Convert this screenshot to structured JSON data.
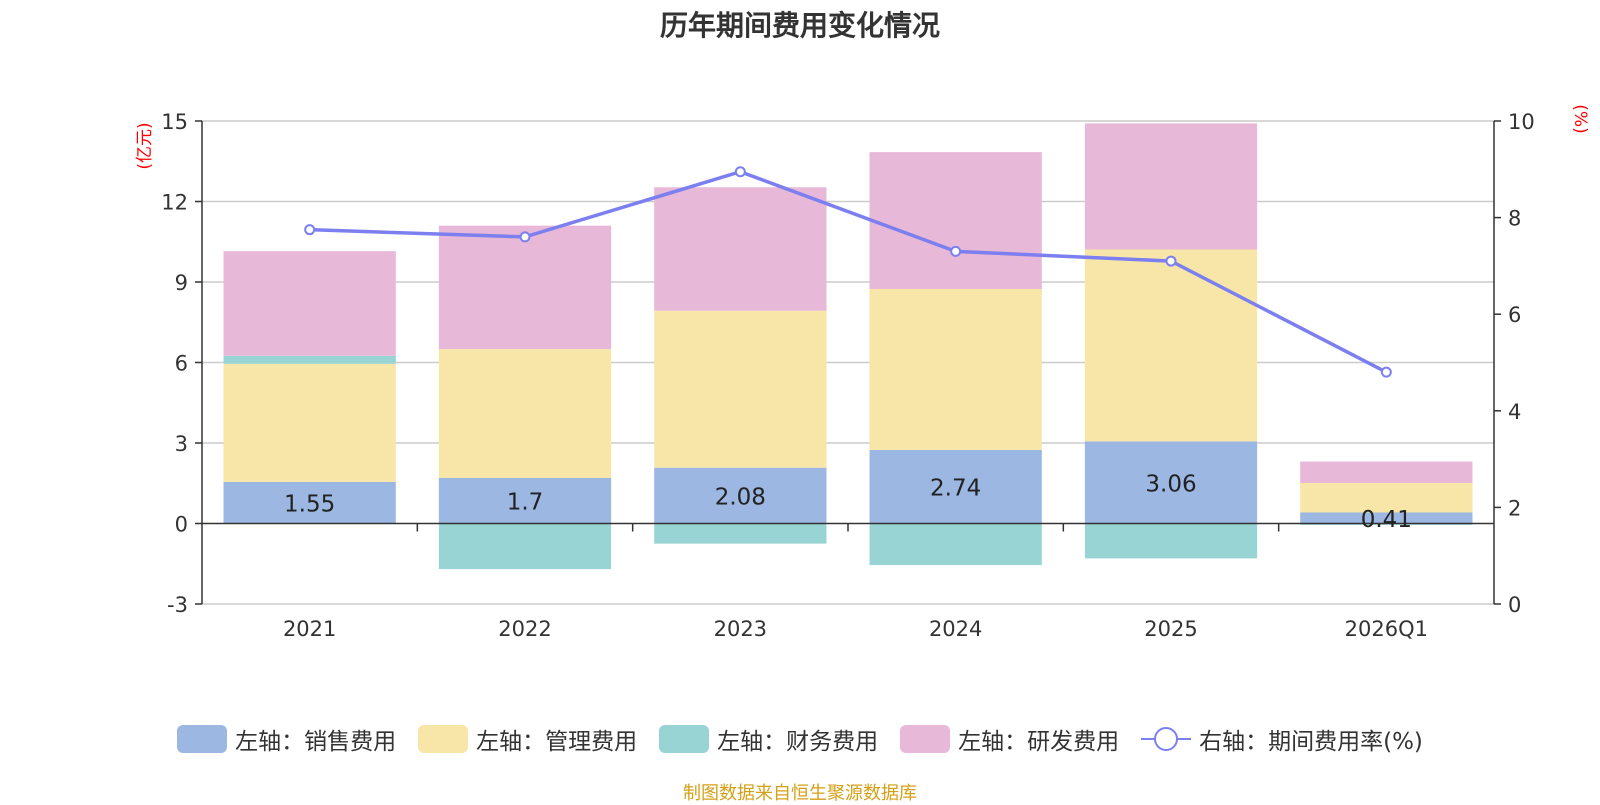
{
  "chart_data": {
    "type": "bar",
    "title": "历年期间费用变化情况",
    "categories": [
      "2021",
      "2022",
      "2023",
      "2024",
      "2025",
      "2026Q1"
    ],
    "left_axis": {
      "unit": "(亿元)",
      "ylim": [
        -3,
        15
      ],
      "ticks": [
        -3,
        0,
        3,
        6,
        9,
        12,
        15
      ]
    },
    "right_axis": {
      "unit": "(%)",
      "ylim": [
        0,
        10
      ],
      "ticks": [
        0,
        2,
        4,
        6,
        8,
        10
      ]
    },
    "series": [
      {
        "name": "左轴：销售费用",
        "axis": "left",
        "color": "#9bb7e2",
        "values": [
          1.55,
          1.7,
          2.08,
          2.74,
          3.06,
          0.41
        ],
        "labels": [
          "1.55",
          "1.7",
          "2.08",
          "2.74",
          "3.06",
          "0.41"
        ]
      },
      {
        "name": "左轴：管理费用",
        "axis": "left",
        "color": "#f7e6a8",
        "values": [
          4.4,
          4.8,
          5.85,
          6.0,
          7.15,
          1.1
        ]
      },
      {
        "name": "左轴：财务费用",
        "axis": "left",
        "color": "#98d4d4",
        "values": [
          0.3,
          -1.7,
          -0.75,
          -1.55,
          -1.3,
          -0.05
        ]
      },
      {
        "name": "左轴：研发费用",
        "axis": "left",
        "color": "#e8b8d8",
        "values": [
          3.9,
          4.6,
          4.6,
          5.1,
          4.7,
          0.8
        ]
      },
      {
        "name": "右轴：期间费用率(%)",
        "axis": "right",
        "type": "line",
        "color": "#7b7ff0",
        "values": [
          7.75,
          7.6,
          8.95,
          7.3,
          7.1,
          4.8
        ]
      }
    ],
    "legend_position": "bottom",
    "grid": true
  },
  "source": "制图数据来自恒生聚源数据库"
}
